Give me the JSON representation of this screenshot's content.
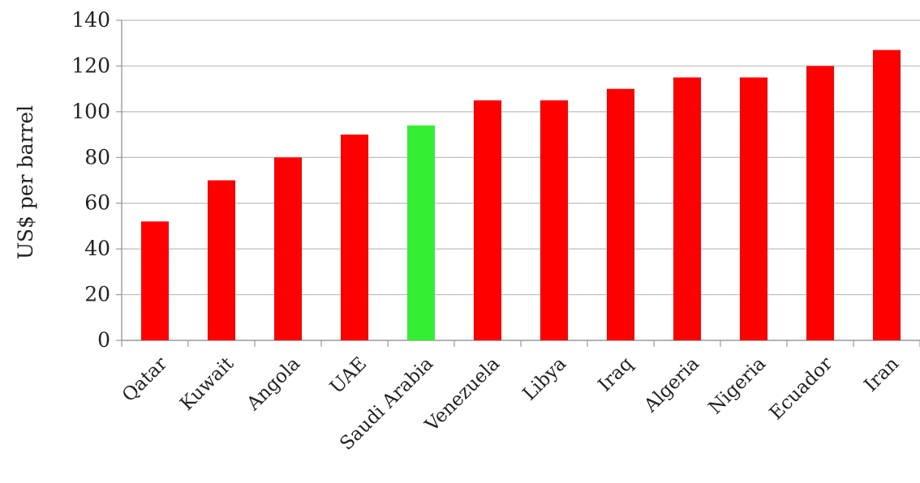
{
  "chart_data": {
    "type": "bar",
    "title": "",
    "xlabel": "",
    "ylabel": "US$ per barrel",
    "ylim": [
      0,
      140
    ],
    "yticks": [
      0,
      20,
      40,
      60,
      80,
      100,
      120,
      140
    ],
    "grid": true,
    "legend": "none",
    "categories": [
      "Qatar",
      "Kuwait",
      "Angola",
      "UAE",
      "Saudi Arabia",
      "Venezuela",
      "Libya",
      "Iraq",
      "Algeria",
      "Nigeria",
      "Ecuador",
      "Iran"
    ],
    "values": [
      52,
      70,
      80,
      90,
      94,
      105,
      105,
      110,
      115,
      115,
      120,
      127
    ],
    "colors": [
      "#ff0000",
      "#ff0000",
      "#ff0000",
      "#ff0000",
      "#33ee33",
      "#ff0000",
      "#ff0000",
      "#ff0000",
      "#ff0000",
      "#ff0000",
      "#ff0000",
      "#ff0000"
    ]
  }
}
